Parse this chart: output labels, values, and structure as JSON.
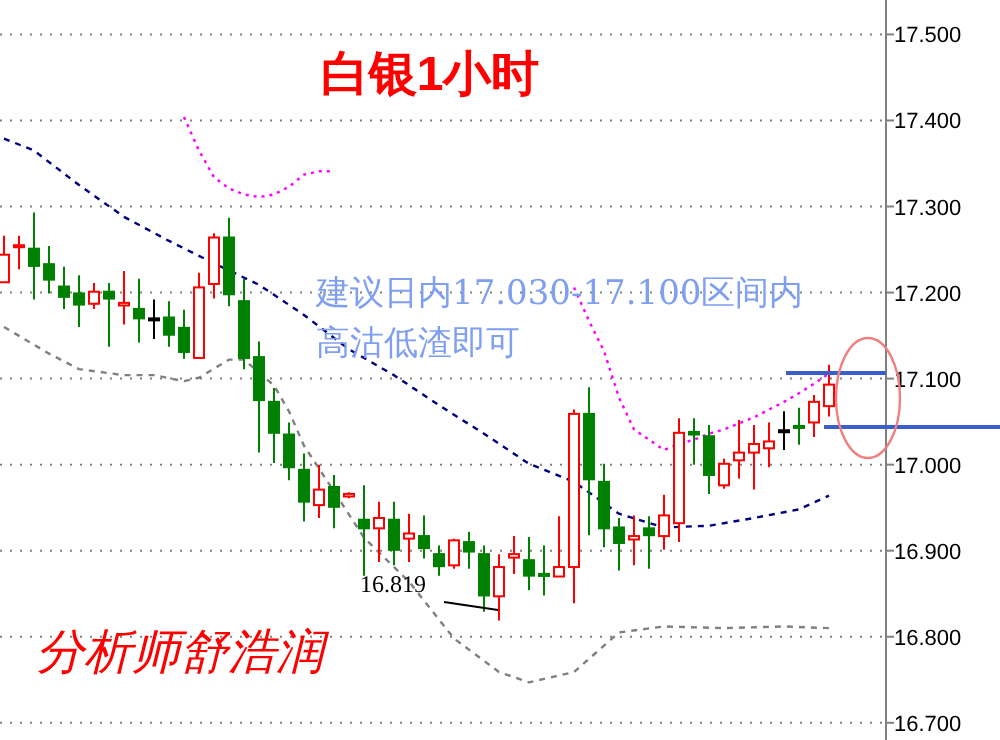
{
  "chart_data": {
    "type": "candlestick",
    "title": "白银1小时",
    "categories": [
      null,
      null,
      null,
      null,
      null,
      null,
      null,
      null,
      null,
      null,
      null,
      null,
      null,
      null,
      null,
      null,
      null,
      null,
      null,
      null,
      null,
      null,
      null,
      null,
      null,
      null,
      null,
      null,
      null,
      null,
      null,
      null,
      null,
      null,
      null,
      null,
      null,
      null,
      null,
      null,
      null,
      null,
      null,
      null,
      null,
      null,
      null,
      null,
      null,
      null,
      null,
      null,
      null,
      null,
      null,
      null
    ],
    "ohlc": [
      [
        17.212,
        17.266,
        17.212,
        17.244
      ],
      [
        17.255,
        17.266,
        17.227,
        17.255
      ],
      [
        17.251,
        17.293,
        17.192,
        17.231
      ],
      [
        17.233,
        17.254,
        17.199,
        17.215
      ],
      [
        17.207,
        17.23,
        17.181,
        17.195
      ],
      [
        17.199,
        17.22,
        17.16,
        17.186
      ],
      [
        17.187,
        17.211,
        17.181,
        17.201
      ],
      [
        17.201,
        17.211,
        17.137,
        17.193
      ],
      [
        17.185,
        17.225,
        17.163,
        17.188
      ],
      [
        17.181,
        17.216,
        17.142,
        17.17
      ],
      [
        17.17,
        17.192,
        17.146,
        17.17
      ],
      [
        17.171,
        17.19,
        17.137,
        17.151
      ],
      [
        17.159,
        17.18,
        17.123,
        17.131
      ],
      [
        17.124,
        17.223,
        17.124,
        17.206
      ],
      [
        17.21,
        17.269,
        17.193,
        17.264
      ],
      [
        17.264,
        17.287,
        17.184,
        17.198
      ],
      [
        17.19,
        17.216,
        17.111,
        17.124
      ],
      [
        17.125,
        17.143,
        17.014,
        17.075
      ],
      [
        17.073,
        17.089,
        17.002,
        17.037
      ],
      [
        17.035,
        17.049,
        16.982,
        16.997
      ],
      [
        16.994,
        17.013,
        16.934,
        16.957
      ],
      [
        16.953,
        17.0,
        16.938,
        16.971
      ],
      [
        16.974,
        16.988,
        16.926,
        16.951
      ],
      [
        16.963,
        16.968,
        16.961,
        16.966
      ],
      [
        16.936,
        16.976,
        16.871,
        16.926
      ],
      [
        16.926,
        16.957,
        16.887,
        16.938
      ],
      [
        16.936,
        16.957,
        16.883,
        16.901
      ],
      [
        16.914,
        16.943,
        16.887,
        16.92
      ],
      [
        16.917,
        16.941,
        16.891,
        16.903
      ],
      [
        16.896,
        16.906,
        16.871,
        16.882
      ],
      [
        16.883,
        16.914,
        16.879,
        16.912
      ],
      [
        16.91,
        16.922,
        16.879,
        16.899
      ],
      [
        16.896,
        16.906,
        16.829,
        16.848
      ],
      [
        16.847,
        16.896,
        16.819,
        16.881
      ],
      [
        16.892,
        16.917,
        16.873,
        16.896
      ],
      [
        16.889,
        16.916,
        16.854,
        16.871
      ],
      [
        16.873,
        16.906,
        16.848,
        16.871
      ],
      [
        16.87,
        16.94,
        16.87,
        16.881
      ],
      [
        16.881,
        17.064,
        16.839,
        17.059
      ],
      [
        17.059,
        17.09,
        16.918,
        16.983
      ],
      [
        16.98,
        17.001,
        16.904,
        16.926
      ],
      [
        16.927,
        16.938,
        16.877,
        16.909
      ],
      [
        16.913,
        16.941,
        16.883,
        16.917
      ],
      [
        16.926,
        16.94,
        16.879,
        16.918
      ],
      [
        16.917,
        16.965,
        16.901,
        16.941
      ],
      [
        16.932,
        17.054,
        16.91,
        17.037
      ],
      [
        17.038,
        17.054,
        17.0,
        17.035
      ],
      [
        17.033,
        17.046,
        16.966,
        16.988
      ],
      [
        16.976,
        17.007,
        16.972,
        17.001
      ],
      [
        17.005,
        17.052,
        16.984,
        17.014
      ],
      [
        17.014,
        17.046,
        16.971,
        17.024
      ],
      [
        17.019,
        17.049,
        16.997,
        17.027
      ],
      [
        17.04,
        17.062,
        17.017,
        17.04
      ],
      [
        17.045,
        17.066,
        17.023,
        17.044
      ],
      [
        17.049,
        17.081,
        17.032,
        17.073
      ],
      [
        17.068,
        17.116,
        17.056,
        17.093
      ]
    ],
    "colors": [
      "#ff0000",
      "#ff0000",
      "#008000",
      "#008000",
      "#008000",
      "#008000",
      "#ff0000",
      "#008000",
      "#ff0000",
      "#008000",
      "#000000",
      "#008000",
      "#008000",
      "#ff0000",
      "#ff0000",
      "#008000",
      "#008000",
      "#008000",
      "#008000",
      "#008000",
      "#008000",
      "#ff0000",
      "#008000",
      "#ff0000",
      "#008000",
      "#ff0000",
      "#008000",
      "#ff0000",
      "#008000",
      "#008000",
      "#ff0000",
      "#008000",
      "#008000",
      "#ff0000",
      "#ff0000",
      "#008000",
      "#008000",
      "#ff0000",
      "#ff0000",
      "#008000",
      "#008000",
      "#008000",
      "#ff0000",
      "#008000",
      "#ff0000",
      "#ff0000",
      "#008000",
      "#008000",
      "#ff0000",
      "#ff0000",
      "#ff0000",
      "#ff0000",
      "#000000",
      "#008000",
      "#ff0000",
      "#ff0000"
    ],
    "series": [
      {
        "type": "line",
        "color": "#ff00ff",
        "line_style": "dotted",
        "values": [
          null,
          null,
          null,
          null,
          null,
          null,
          null,
          null,
          null,
          null,
          null,
          null,
          17.404,
          17.365,
          17.334,
          17.321,
          17.314,
          17.311,
          17.314,
          17.323,
          17.337,
          17.341,
          17.341,
          null,
          null,
          null,
          null,
          null,
          null,
          null,
          null,
          null,
          null,
          null,
          null,
          null,
          null,
          null,
          null,
          null,
          null,
          null,
          null,
          null,
          null,
          null,
          null,
          null,
          null,
          null,
          null,
          null,
          null,
          null,
          null,
          null
        ]
      },
      {
        "type": "line",
        "color": "#ff00ff",
        "line_style": "dotted",
        "values": [
          null,
          null,
          null,
          null,
          null,
          null,
          null,
          null,
          null,
          null,
          null,
          null,
          null,
          null,
          null,
          null,
          null,
          null,
          null,
          null,
          null,
          null,
          null,
          null,
          null,
          null,
          null,
          null,
          null,
          null,
          null,
          null,
          null,
          null,
          null,
          null,
          null,
          null,
          17.206,
          17.167,
          17.132,
          17.078,
          17.041,
          17.029,
          17.017,
          17.024,
          17.029,
          17.036,
          17.041,
          17.048,
          17.055,
          17.064,
          17.073,
          17.083,
          17.094,
          17.106
        ]
      },
      {
        "type": "line",
        "color": "#000080",
        "line_style": "dashed",
        "values": [
          17.379,
          null,
          17.365,
          null,
          null,
          17.325,
          null,
          null,
          17.288,
          null,
          null,
          17.26,
          null,
          null,
          17.234,
          null,
          null,
          17.209,
          null,
          null,
          17.174,
          null,
          null,
          17.134,
          null,
          null,
          17.104,
          null,
          null,
          17.069,
          null,
          null,
          17.036,
          null,
          null,
          17.001,
          null,
          null,
          16.98,
          null,
          null,
          16.943,
          null,
          null,
          16.927,
          null,
          null,
          16.929,
          null,
          null,
          16.938,
          null,
          null,
          16.948,
          null,
          16.964
        ]
      },
      {
        "type": "line",
        "color": "#808080",
        "line_style": "dashed",
        "values": [
          17.16,
          null,
          null,
          17.129,
          null,
          17.111,
          null,
          null,
          17.104,
          null,
          17.104,
          null,
          17.097,
          17.101,
          null,
          17.122,
          17.122,
          null,
          17.092,
          17.062,
          17.022,
          null,
          16.969,
          null,
          16.915,
          null,
          null,
          16.864,
          null,
          null,
          16.798,
          null,
          null,
          16.759,
          null,
          16.747,
          null,
          null,
          16.759,
          null,
          null,
          16.805,
          null,
          null,
          16.812,
          null,
          null,
          null,
          16.81,
          null,
          null,
          null,
          16.812,
          null,
          null,
          16.81
        ]
      }
    ],
    "ylim": [
      16.68,
      17.54
    ],
    "yticks": [
      {
        "value": 16.7,
        "label": "16.700"
      },
      {
        "value": 16.8,
        "label": "16.800"
      },
      {
        "value": 16.9,
        "label": "16.900"
      },
      {
        "value": 17.0,
        "label": "17.000"
      },
      {
        "value": 17.1,
        "label": "17.100"
      },
      {
        "value": 17.2,
        "label": "17.200"
      },
      {
        "value": 17.3,
        "label": "17.300"
      },
      {
        "value": 17.4,
        "label": "17.400"
      },
      {
        "value": 17.5,
        "label": "17.500"
      }
    ],
    "grid": "y",
    "annotations": [
      "16.819",
      "建议日内17.030-17.100区间内",
      "高沽低渣即可",
      "分析师舒浩润"
    ]
  }
}
